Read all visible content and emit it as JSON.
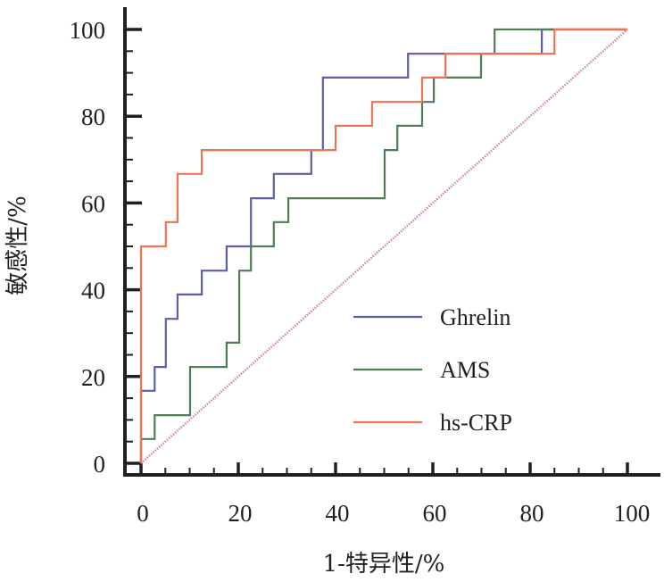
{
  "chart_data": {
    "type": "line",
    "title": "",
    "xlabel": "1-特异性/%",
    "ylabel": "敏感性/%",
    "xlim": [
      0,
      100
    ],
    "ylim": [
      0,
      100
    ],
    "xticks": [
      0,
      20,
      40,
      60,
      80,
      100
    ],
    "yticks": [
      0,
      20,
      40,
      60,
      80,
      100
    ],
    "xtick_labels": [
      "0",
      "20",
      "40",
      "60",
      "80",
      "100"
    ],
    "ytick_labels": [
      "0",
      "20",
      "40",
      "60",
      "80",
      "100"
    ],
    "minor_tick_step": 5,
    "grid": false,
    "legend_position": "lower-right",
    "step": true,
    "series": [
      {
        "name": "Ghrelin",
        "color": "#5a5eab",
        "x": [
          0,
          0,
          2.8,
          2.8,
          5.1,
          5.1,
          7.5,
          7.5,
          12.5,
          12.5,
          17.6,
          17.6,
          22.6,
          22.6,
          27.3,
          27.3,
          35.0,
          35.0,
          37.4,
          37.4,
          54.9,
          54.9,
          82.4,
          82.4,
          100
        ],
        "y": [
          0,
          16.7,
          16.7,
          22.2,
          22.2,
          33.3,
          33.3,
          38.9,
          38.9,
          44.4,
          44.4,
          50.0,
          50.0,
          61.1,
          61.1,
          66.7,
          66.7,
          72.2,
          72.2,
          88.9,
          88.9,
          94.4,
          94.4,
          100,
          100
        ]
      },
      {
        "name": "AMS",
        "color": "#4e7d57",
        "x": [
          0,
          0,
          2.8,
          2.8,
          10.1,
          10.1,
          17.6,
          17.6,
          20.2,
          20.2,
          22.6,
          22.6,
          27.3,
          27.3,
          30.3,
          30.3,
          50.1,
          50.1,
          52.7,
          52.7,
          57.8,
          57.8,
          60.2,
          60.2,
          69.9,
          69.9,
          72.7,
          72.7,
          100
        ],
        "y": [
          0,
          5.6,
          5.6,
          11.1,
          11.1,
          22.2,
          22.2,
          27.8,
          27.8,
          44.4,
          44.4,
          50.0,
          50.0,
          55.6,
          55.6,
          61.1,
          61.1,
          72.2,
          72.2,
          77.8,
          77.8,
          83.3,
          83.3,
          88.9,
          88.9,
          94.4,
          94.4,
          100,
          100
        ]
      },
      {
        "name": "hs-CRP",
        "color": "#ec7550",
        "x": [
          0,
          0,
          5.1,
          5.1,
          7.5,
          7.5,
          12.5,
          12.5,
          40.0,
          40.0,
          47.5,
          47.5,
          57.8,
          57.8,
          62.6,
          62.6,
          85.0,
          85.0,
          100
        ],
        "y": [
          0,
          50.0,
          50.0,
          55.6,
          55.6,
          66.7,
          66.7,
          72.2,
          72.2,
          77.8,
          77.8,
          83.3,
          83.3,
          88.9,
          88.9,
          94.4,
          94.4,
          100,
          100
        ]
      }
    ],
    "reference_line": {
      "x": [
        0,
        100
      ],
      "y": [
        0,
        100
      ],
      "color": "#c98a98",
      "style": "dotted"
    }
  },
  "axis_color": "#231f20"
}
